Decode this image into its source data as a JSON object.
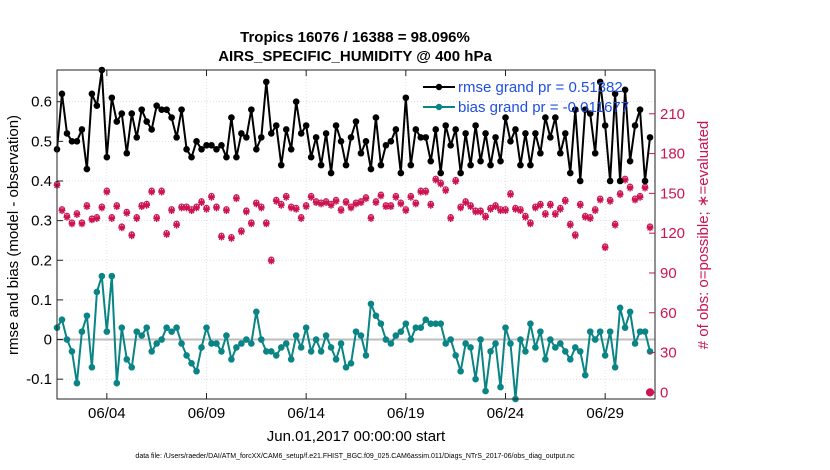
{
  "chart_data": {
    "type": "line",
    "title": "Tropics 16076 / 16388 = 98.096%",
    "subtitle": "AIRS_SPECIFIC_HUMIDITY @ 400 hPa",
    "xlabel": "Jun.01,2017 00:00:00 start",
    "ylabel_left": "rmse and bias (model - observation)",
    "ylabel_right": "# of obs: o=possible; ∗=evaluated",
    "footer": "data file: /Users/raeder/DAI/ATM_forcXX/CAM6_setup/f.e21.FHIST_BGC.f09_025.CAM6assim.011/Diags_NTrS_2017-06/obs_diag_output.nc",
    "xlim": [
      1.5,
      31.5
    ],
    "ylim_left": [
      -0.15,
      0.68
    ],
    "ylim_right": [
      -5,
      243
    ],
    "x_ticks": [
      4,
      9,
      14,
      19,
      24,
      29
    ],
    "x_tick_labels": [
      "06/04",
      "06/09",
      "06/14",
      "06/19",
      "06/24",
      "06/29"
    ],
    "y_ticks_left": [
      -0.1,
      0,
      0.1,
      0.2,
      0.3,
      0.4,
      0.5,
      0.6
    ],
    "y_tick_labels_left": [
      "-0.1",
      "0",
      "0.1",
      "0.2",
      "0.3",
      "0.4",
      "0.5",
      "0.6"
    ],
    "y_ticks_right": [
      0,
      30,
      60,
      90,
      120,
      150,
      180,
      210
    ],
    "y_tick_labels_right": [
      "0",
      "30",
      "60",
      "90",
      "120",
      "150",
      "180",
      "210"
    ],
    "grid": true,
    "zero_line": 0,
    "legend_position": "top-right",
    "x": [
      1.5,
      1.75,
      2,
      2.25,
      2.5,
      2.75,
      3,
      3.25,
      3.5,
      3.75,
      4,
      4.25,
      4.5,
      4.75,
      5,
      5.25,
      5.5,
      5.75,
      6,
      6.25,
      6.5,
      6.75,
      7,
      7.25,
      7.5,
      7.75,
      8,
      8.25,
      8.5,
      8.75,
      9,
      9.25,
      9.5,
      9.75,
      10,
      10.25,
      10.5,
      10.75,
      11,
      11.25,
      11.5,
      11.75,
      12,
      12.25,
      12.5,
      12.75,
      13,
      13.25,
      13.5,
      13.75,
      14,
      14.25,
      14.5,
      14.75,
      15,
      15.25,
      15.5,
      15.75,
      16,
      16.25,
      16.5,
      16.75,
      17,
      17.25,
      17.5,
      17.75,
      18,
      18.25,
      18.5,
      18.75,
      19,
      19.25,
      19.5,
      19.75,
      20,
      20.25,
      20.5,
      20.75,
      21,
      21.25,
      21.5,
      21.75,
      22,
      22.25,
      22.5,
      22.75,
      23,
      23.25,
      23.5,
      23.75,
      24,
      24.25,
      24.5,
      24.75,
      25,
      25.25,
      25.5,
      25.75,
      26,
      26.25,
      26.5,
      26.75,
      27,
      27.25,
      27.5,
      27.75,
      28,
      28.25,
      28.5,
      28.75,
      29,
      29.25,
      29.5,
      29.75,
      30,
      30.25,
      30.5,
      30.75,
      31,
      31.25
    ],
    "series": [
      {
        "name": "rmse grand pr = 0.51382",
        "legend_label": "rmse grand pr = 0.51382",
        "color": "#000000",
        "axis": "left",
        "values": [
          0.48,
          0.62,
          0.52,
          0.5,
          0.5,
          0.53,
          0.43,
          0.62,
          0.59,
          0.68,
          0.46,
          0.61,
          0.55,
          0.57,
          0.47,
          0.57,
          0.51,
          0.58,
          0.55,
          0.53,
          0.59,
          0.58,
          0.58,
          0.56,
          0.51,
          0.58,
          0.48,
          0.46,
          0.5,
          0.48,
          0.49,
          0.49,
          0.48,
          0.49,
          0.46,
          0.56,
          0.46,
          0.52,
          0.51,
          0.58,
          0.48,
          0.51,
          0.65,
          0.52,
          0.54,
          0.44,
          0.53,
          0.48,
          0.6,
          0.52,
          0.54,
          0.46,
          0.51,
          0.44,
          0.52,
          0.42,
          0.54,
          0.5,
          0.44,
          0.51,
          0.55,
          0.47,
          0.5,
          0.43,
          0.56,
          0.44,
          0.49,
          0.5,
          0.53,
          0.42,
          0.61,
          0.44,
          0.53,
          0.51,
          0.51,
          0.45,
          0.53,
          0.42,
          0.54,
          0.49,
          0.53,
          0.42,
          0.52,
          0.44,
          0.54,
          0.45,
          0.52,
          0.44,
          0.51,
          0.45,
          0.56,
          0.5,
          0.53,
          0.44,
          0.52,
          0.44,
          0.52,
          0.47,
          0.56,
          0.51,
          0.56,
          0.47,
          0.52,
          0.42,
          0.58,
          0.4,
          0.58,
          0.57,
          0.47,
          0.65,
          0.54,
          0.4,
          0.62,
          0.4,
          0.63,
          0.45,
          0.54,
          0.58,
          0.4,
          0.51
        ]
      },
      {
        "name": "bias grand pr = -0.011677",
        "legend_label": "bias grand pr = -0.011677",
        "color": "#0a8484",
        "axis": "left",
        "values": [
          0.03,
          0.05,
          0.0,
          -0.03,
          -0.11,
          0.02,
          0.06,
          -0.07,
          0.12,
          0.16,
          0.02,
          0.16,
          -0.11,
          0.03,
          -0.05,
          -0.07,
          0.02,
          0.01,
          0.03,
          -0.03,
          -0.01,
          0.0,
          0.03,
          0.02,
          0.03,
          -0.01,
          -0.04,
          -0.06,
          -0.08,
          -0.02,
          0.03,
          -0.01,
          -0.01,
          -0.03,
          0.01,
          -0.05,
          -0.02,
          -0.01,
          0.0,
          -0.01,
          0.07,
          0.0,
          -0.03,
          -0.03,
          -0.04,
          -0.02,
          -0.01,
          -0.05,
          0.01,
          -0.02,
          0.03,
          -0.03,
          0.0,
          -0.03,
          0.01,
          -0.02,
          -0.05,
          -0.01,
          -0.07,
          -0.06,
          0.02,
          0.01,
          -0.04,
          0.09,
          0.06,
          0.04,
          0.0,
          -0.01,
          0.01,
          0.02,
          0.04,
          0.0,
          0.03,
          0.03,
          0.05,
          0.04,
          0.04,
          0.04,
          -0.01,
          0.0,
          -0.04,
          -0.08,
          -0.01,
          -0.02,
          -0.1,
          0.0,
          -0.13,
          -0.03,
          -0.01,
          -0.12,
          0.03,
          -0.01,
          -0.15,
          0.0,
          -0.03,
          0.04,
          -0.02,
          0.02,
          -0.05,
          0.0,
          -0.02,
          -0.01,
          -0.03,
          -0.05,
          -0.02,
          -0.03,
          -0.09,
          0.02,
          0.0,
          0.02,
          -0.04,
          0.02,
          -0.07,
          0.08,
          0.03,
          0.07,
          -0.01,
          0.02,
          0.02,
          -0.03
        ]
      },
      {
        "name": "# obs possible",
        "color": "#cc1452",
        "axis": "right",
        "marker": "o",
        "values": [
          157,
          138,
          133,
          128,
          135,
          128,
          141,
          131,
          132,
          140,
          152,
          132,
          141,
          125,
          136,
          119,
          132,
          141,
          142,
          152,
          132,
          152,
          120,
          138,
          127,
          140,
          140,
          138,
          140,
          144,
          139,
          148,
          140,
          118,
          138,
          117,
          147,
          122,
          137,
          128,
          143,
          140,
          128,
          100,
          145,
          142,
          148,
          140,
          139,
          132,
          141,
          148,
          144,
          143,
          144,
          142,
          145,
          138,
          144,
          140,
          143,
          144,
          147,
          132,
          144,
          149,
          141,
          141,
          148,
          143,
          138,
          148,
          143,
          152,
          152,
          142,
          161,
          158,
          153,
          132,
          160,
          140,
          144,
          141,
          137,
          137,
          133,
          139,
          141,
          138,
          138,
          150,
          139,
          138,
          133,
          128,
          140,
          142,
          135,
          142,
          135,
          139,
          145,
          127,
          119,
          142,
          133,
          132,
          138,
          146,
          110,
          145,
          127,
          150,
          161,
          155,
          146,
          148,
          155,
          125
        ]
      },
      {
        "name": "# obs evaluated",
        "color": "#cc1452",
        "axis": "right",
        "marker": "*",
        "values": [
          156,
          137,
          132,
          127,
          134,
          127,
          140,
          130,
          131,
          139,
          151,
          131,
          140,
          124,
          135,
          118,
          131,
          140,
          141,
          151,
          131,
          151,
          119,
          137,
          126,
          139,
          139,
          137,
          139,
          143,
          138,
          147,
          139,
          117,
          137,
          116,
          146,
          121,
          136,
          127,
          142,
          139,
          127,
          99,
          144,
          141,
          147,
          139,
          138,
          131,
          140,
          147,
          143,
          142,
          143,
          141,
          144,
          137,
          143,
          139,
          142,
          143,
          146,
          131,
          143,
          148,
          140,
          140,
          147,
          142,
          137,
          147,
          142,
          151,
          151,
          141,
          160,
          157,
          152,
          131,
          159,
          139,
          143,
          140,
          136,
          136,
          132,
          138,
          140,
          137,
          137,
          149,
          138,
          137,
          132,
          127,
          139,
          141,
          134,
          141,
          134,
          138,
          144,
          126,
          118,
          141,
          132,
          131,
          137,
          145,
          109,
          144,
          126,
          149,
          160,
          154,
          145,
          147,
          154,
          124
        ]
      }
    ],
    "outlier_points": [
      {
        "series": "# obs possible",
        "x": 31.25,
        "y": 0
      }
    ]
  }
}
